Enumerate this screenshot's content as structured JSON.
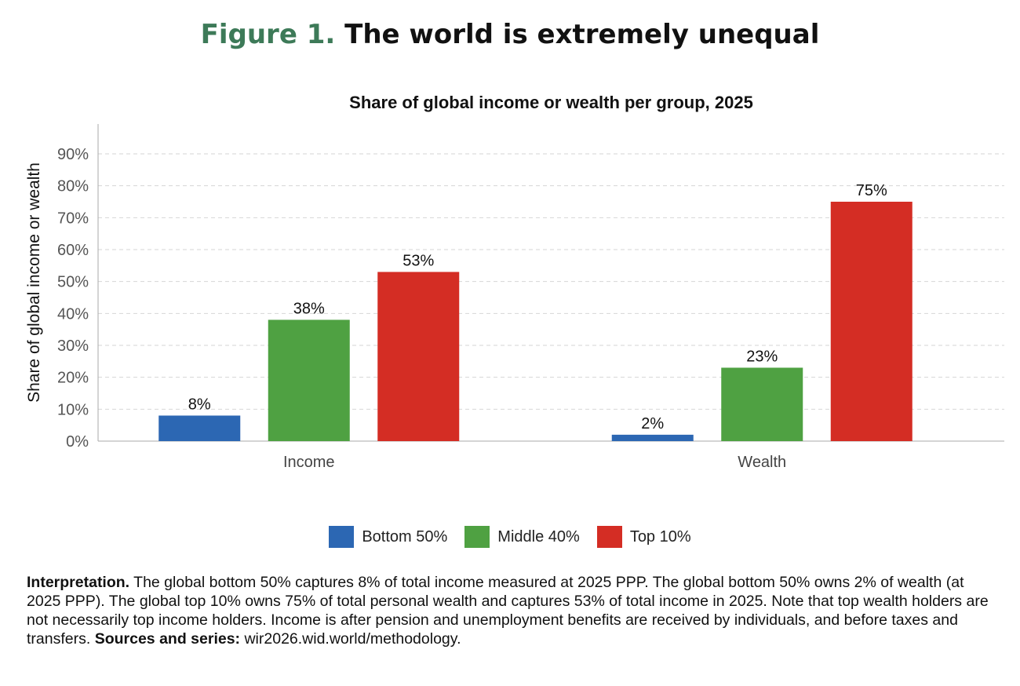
{
  "figure": {
    "label": "Figure 1.",
    "title": "The world is extremely unequal",
    "label_color": "#3d7a58"
  },
  "chart_data": {
    "type": "bar",
    "title": "Share of global income or wealth per group, 2025",
    "ylabel": "Share of global income or wealth",
    "xlabel": "",
    "ylim": [
      0,
      90
    ],
    "yticks": [
      "0%",
      "10%",
      "20%",
      "30%",
      "40%",
      "50%",
      "60%",
      "70%",
      "80%",
      "90%"
    ],
    "grid": true,
    "legend_position": "bottom",
    "categories": [
      "Income",
      "Wealth"
    ],
    "series": [
      {
        "name": "Bottom 50%",
        "color": "#2c67b3",
        "values": [
          8,
          2
        ],
        "labels": [
          "8%",
          "2%"
        ]
      },
      {
        "name": "Middle 40%",
        "color": "#4fa142",
        "values": [
          38,
          23
        ],
        "labels": [
          "38%",
          "23%"
        ]
      },
      {
        "name": "Top 10%",
        "color": "#d42d24",
        "values": [
          53,
          75
        ],
        "labels": [
          "53%",
          "75%"
        ]
      }
    ]
  },
  "interpretation": {
    "lead": "Interpretation.",
    "text": " The global bottom 50% captures 8% of total income measured at 2025 PPP. The global bottom 50% owns 2% of wealth (at 2025 PPP). The global top 10% owns 75% of total personal wealth and captures 53% of total income in 2025. Note that top wealth holders are not necessarily top income holders. Income is after pension and unemployment benefits are received by individuals, and before taxes and transfers. ",
    "sources_label": "Sources and series:",
    "sources": " wir2026.wid.world/methodology."
  }
}
